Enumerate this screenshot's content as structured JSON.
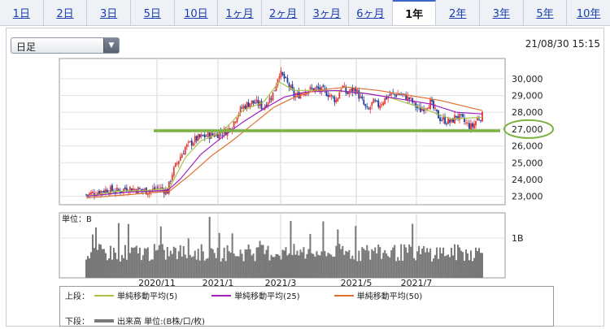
{
  "tabs": [
    {
      "label": "1日"
    },
    {
      "label": "2日"
    },
    {
      "label": "3日"
    },
    {
      "label": "5日"
    },
    {
      "label": "10日"
    },
    {
      "label": "1ヶ月"
    },
    {
      "label": "2ヶ月"
    },
    {
      "label": "3ヶ月"
    },
    {
      "label": "6ヶ月"
    },
    {
      "label": "1年",
      "active": true
    },
    {
      "label": "2年"
    },
    {
      "label": "3年"
    },
    {
      "label": "5年"
    },
    {
      "label": "10年"
    }
  ],
  "period_select": {
    "value": "日足"
  },
  "datetime": "21/08/30 15:15",
  "chart_data": {
    "type": "candlestick",
    "y_ticks": [
      "30,000",
      "29,000",
      "28,000",
      "27,000",
      "26,000",
      "25,000",
      "24,000",
      "23,000"
    ],
    "y_tick_values": [
      30000,
      29000,
      28000,
      27000,
      26000,
      25000,
      24000,
      23000
    ],
    "ylim": [
      22500,
      31200
    ],
    "x_ticks": [
      "2020/11",
      "2021/1",
      "2021/3",
      "2021/5",
      "2021/7"
    ],
    "close_path": [
      [
        0,
        23100
      ],
      [
        10,
        23250
      ],
      [
        20,
        23400
      ],
      [
        30,
        23300
      ],
      [
        40,
        23500
      ],
      [
        50,
        23400
      ],
      [
        60,
        23300
      ],
      [
        70,
        23500
      ],
      [
        78,
        23300
      ],
      [
        82,
        24300
      ],
      [
        88,
        25100
      ],
      [
        95,
        25900
      ],
      [
        105,
        26400
      ],
      [
        115,
        26600
      ],
      [
        125,
        26700
      ],
      [
        135,
        26900
      ],
      [
        140,
        27200
      ],
      [
        145,
        27900
      ],
      [
        150,
        28300
      ],
      [
        158,
        28600
      ],
      [
        165,
        28500
      ],
      [
        170,
        28300
      ],
      [
        180,
        29200
      ],
      [
        185,
        30400
      ],
      [
        190,
        30000
      ],
      [
        195,
        29500
      ],
      [
        200,
        28900
      ],
      [
        210,
        29300
      ],
      [
        220,
        29400
      ],
      [
        230,
        29200
      ],
      [
        240,
        28700
      ],
      [
        245,
        29600
      ],
      [
        250,
        29100
      ],
      [
        258,
        29400
      ],
      [
        265,
        28600
      ],
      [
        270,
        28000
      ],
      [
        275,
        28600
      ],
      [
        280,
        28400
      ],
      [
        290,
        29000
      ],
      [
        300,
        29100
      ],
      [
        310,
        28800
      ],
      [
        320,
        28100
      ],
      [
        330,
        28600
      ],
      [
        335,
        28000
      ],
      [
        340,
        27600
      ],
      [
        345,
        27500
      ],
      [
        350,
        27400
      ],
      [
        355,
        27800
      ],
      [
        360,
        27600
      ],
      [
        365,
        27300
      ],
      [
        370,
        27100
      ],
      [
        375,
        27600
      ],
      [
        380,
        27800
      ]
    ],
    "ma_paths": [
      {
        "name": "単純移動平均(5)",
        "color": "#a6c44a",
        "points": [
          [
            0,
            23000
          ],
          [
            30,
            23300
          ],
          [
            60,
            23350
          ],
          [
            80,
            23500
          ],
          [
            95,
            25300
          ],
          [
            110,
            26300
          ],
          [
            130,
            26800
          ],
          [
            150,
            28100
          ],
          [
            170,
            28600
          ],
          [
            185,
            29800
          ],
          [
            200,
            29300
          ],
          [
            230,
            29300
          ],
          [
            260,
            29200
          ],
          [
            290,
            28900
          ],
          [
            320,
            28300
          ],
          [
            350,
            27600
          ],
          [
            380,
            27700
          ]
        ]
      },
      {
        "name": "単純移動平均(25)",
        "color": "#a020c0",
        "points": [
          [
            0,
            23000
          ],
          [
            40,
            23250
          ],
          [
            78,
            23350
          ],
          [
            90,
            24000
          ],
          [
            110,
            25500
          ],
          [
            130,
            26500
          ],
          [
            150,
            27400
          ],
          [
            170,
            28200
          ],
          [
            190,
            28900
          ],
          [
            210,
            29200
          ],
          [
            240,
            29300
          ],
          [
            270,
            29100
          ],
          [
            300,
            28800
          ],
          [
            330,
            28500
          ],
          [
            355,
            28000
          ],
          [
            380,
            27900
          ]
        ]
      },
      {
        "name": "単純移動平均(50)",
        "color": "#e07030",
        "points": [
          [
            0,
            22900
          ],
          [
            40,
            23100
          ],
          [
            80,
            23300
          ],
          [
            100,
            24300
          ],
          [
            120,
            25400
          ],
          [
            140,
            26300
          ],
          [
            160,
            27300
          ],
          [
            180,
            28300
          ],
          [
            200,
            28900
          ],
          [
            220,
            29300
          ],
          [
            250,
            29500
          ],
          [
            280,
            29300
          ],
          [
            310,
            29000
          ],
          [
            340,
            28700
          ],
          [
            360,
            28400
          ],
          [
            380,
            28100
          ]
        ]
      }
    ],
    "horizontal_line": {
      "value": 26900,
      "color": "#7cb342"
    },
    "highlight_label": "27,000",
    "volume_unit": "単位：B",
    "volume_tick": "1B",
    "volume_seed": 7
  },
  "legend": {
    "upper_label": "上段：",
    "lower_label": "下段：",
    "volume_label": "出来高 単位:(B株/口/枚)"
  }
}
